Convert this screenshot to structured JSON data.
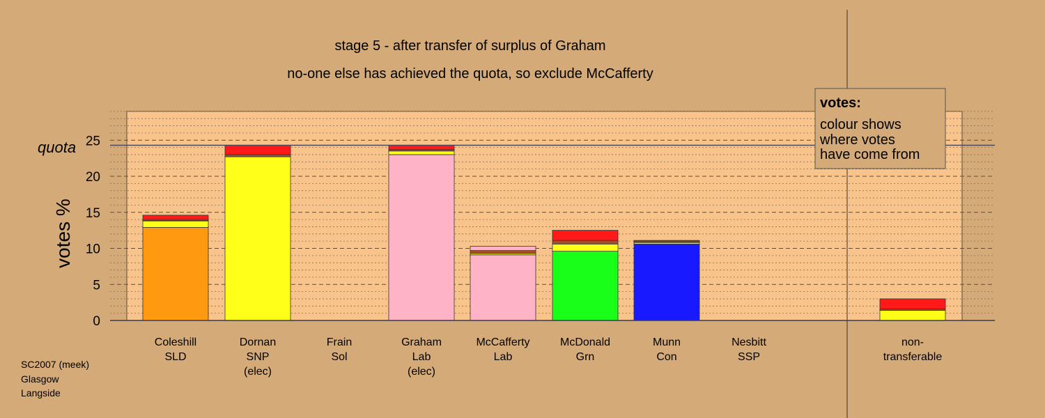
{
  "title_line1": "stage 5 - after transfer of surplus of Graham",
  "title_line2": "no-one else has achieved the quota, so exclude McCafferty",
  "ylabel": "votes %",
  "quota_label": "quota",
  "legend": {
    "heading": "votes:",
    "lines": [
      "colour shows",
      "where votes",
      "have come from"
    ]
  },
  "footer": [
    "SC2007 (meek)",
    "Glasgow",
    "Langside"
  ],
  "colors": {
    "background": "#d4aa78",
    "plot": "#f8c48c",
    "orange": "#ff9910",
    "yellow": "#ffff19",
    "pink": "#ffb3c6",
    "green": "#19ff19",
    "blue": "#1919ff",
    "red": "#ff1919",
    "brown": "#a0522d"
  },
  "chart_data": {
    "type": "bar",
    "stacked": true,
    "ylim": [
      0,
      29
    ],
    "yticks": [
      0,
      5,
      10,
      15,
      20,
      25
    ],
    "quota": 24.3,
    "grid": "dashed horizontal lines at every 1%, darker every 5%",
    "categories": [
      {
        "label": [
          "Coleshill",
          "SLD"
        ],
        "segments": [
          {
            "source": "Coleshill",
            "color": "orange",
            "value": 12.9
          },
          {
            "source": "Dornan",
            "color": "yellow",
            "value": 0.9
          },
          {
            "source": "Frain",
            "color": "brown",
            "value": 0.1
          },
          {
            "source": "Graham",
            "color": "pink",
            "value": 0.1
          },
          {
            "source": "Nesbitt",
            "color": "red",
            "value": 0.6
          }
        ]
      },
      {
        "label": [
          "Dornan",
          "SNP",
          "(elec)"
        ],
        "segments": [
          {
            "source": "Dornan",
            "color": "yellow",
            "value": 22.7
          },
          {
            "source": "Frain",
            "color": "brown",
            "value": 0.3
          },
          {
            "source": "Nesbitt",
            "color": "red",
            "value": 1.3
          }
        ]
      },
      {
        "label": [
          "Frain",
          "Sol"
        ],
        "segments": []
      },
      {
        "label": [
          "Graham",
          "Lab",
          "(elec)"
        ],
        "segments": [
          {
            "source": "Graham",
            "color": "pink",
            "value": 23.0
          },
          {
            "source": "Dornan",
            "color": "yellow",
            "value": 0.5
          },
          {
            "source": "Frain",
            "color": "brown",
            "value": 0.2
          },
          {
            "source": "Nesbitt",
            "color": "red",
            "value": 0.6
          }
        ]
      },
      {
        "label": [
          "McCafferty",
          "Lab"
        ],
        "segments": [
          {
            "source": "McCafferty",
            "color": "pink",
            "value": 9.1
          },
          {
            "source": "Dornan",
            "color": "yellow",
            "value": 0.2
          },
          {
            "source": "Frain",
            "color": "brown",
            "value": 0.4
          },
          {
            "source": "Graham",
            "color": "pink",
            "value": 0.6
          }
        ]
      },
      {
        "label": [
          "McDonald",
          "Grn"
        ],
        "segments": [
          {
            "source": "McDonald",
            "color": "green",
            "value": 9.6
          },
          {
            "source": "Dornan",
            "color": "yellow",
            "value": 1.0
          },
          {
            "source": "Frain",
            "color": "brown",
            "value": 0.5
          },
          {
            "source": "Nesbitt",
            "color": "red",
            "value": 1.4
          }
        ]
      },
      {
        "label": [
          "Munn",
          "Con"
        ],
        "segments": [
          {
            "source": "Munn",
            "color": "blue",
            "value": 10.6
          },
          {
            "source": "Dornan",
            "color": "yellow",
            "value": 0.2
          },
          {
            "source": "Frain",
            "color": "brown",
            "value": 0.2
          },
          {
            "source": "Nesbitt",
            "color": "red",
            "value": 0.1
          }
        ]
      },
      {
        "label": [
          "Nesbitt",
          "SSP"
        ],
        "segments": []
      },
      {
        "label": [
          "non-",
          "transferable"
        ],
        "segments": [
          {
            "source": "Dornan",
            "color": "yellow",
            "value": 1.4
          },
          {
            "source": "Frain",
            "color": "brown",
            "value": 0.2
          },
          {
            "source": "Nesbitt",
            "color": "red",
            "value": 1.4
          }
        ]
      }
    ]
  }
}
